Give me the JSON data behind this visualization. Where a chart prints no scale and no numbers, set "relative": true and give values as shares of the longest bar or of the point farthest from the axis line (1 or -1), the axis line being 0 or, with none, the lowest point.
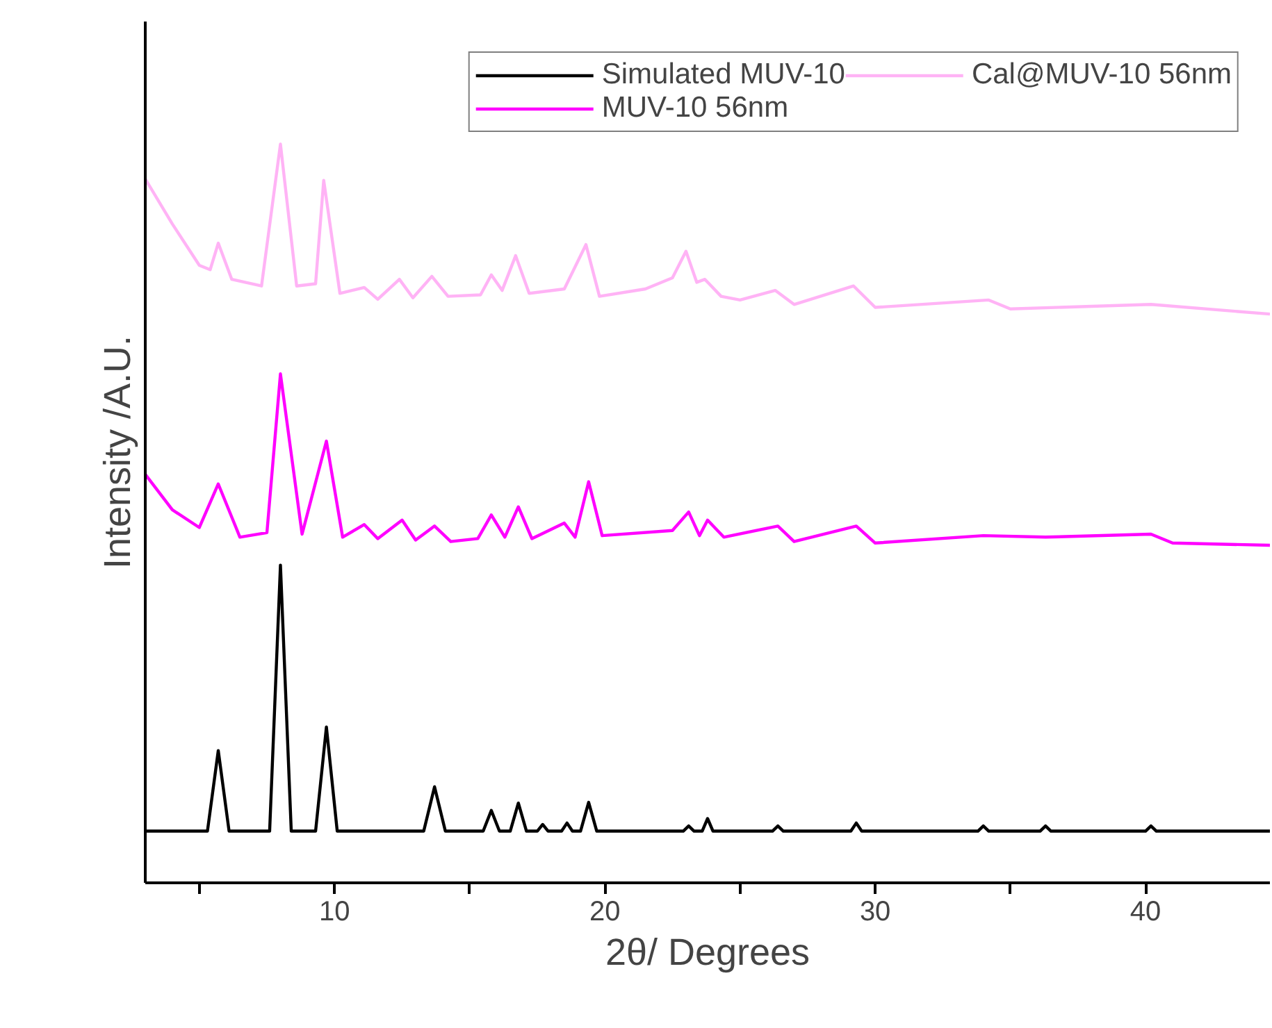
{
  "chart_data": {
    "type": "line",
    "relative": true,
    "xlabel": "2θ/ Degrees",
    "ylabel": "Intensity /A.U.",
    "xlim": [
      3,
      44.6
    ],
    "xticks": [
      {
        "value": 5,
        "label": null
      },
      10,
      {
        "value": 15,
        "label": null
      },
      20,
      {
        "value": 25,
        "label": null
      },
      30,
      {
        "value": 35,
        "label": null
      },
      40
    ],
    "legend": "top right",
    "grid": false,
    "marker": "none",
    "line_style": "solid",
    "series": [
      {
        "name": "Simulated MUV-10",
        "color": "#000000",
        "x": [
          3,
          5.3,
          5.7,
          6.1,
          7.6,
          8.0,
          8.4,
          9.3,
          9.7,
          10.1,
          13.3,
          13.7,
          14.1,
          15.5,
          15.8,
          16.1,
          16.5,
          16.8,
          17.1,
          17.5,
          17.7,
          17.9,
          18.4,
          18.6,
          18.8,
          19.1,
          19.4,
          19.7,
          22.9,
          23.1,
          23.3,
          23.6,
          23.8,
          24.0,
          26.2,
          26.4,
          26.6,
          29.1,
          29.3,
          29.5,
          33.8,
          34.0,
          34.2,
          36.1,
          36.3,
          36.5,
          40.0,
          40.2,
          40.4,
          44.6
        ],
        "values": [
          0.07,
          0.07,
          0.179,
          0.07,
          0.07,
          0.43,
          0.07,
          0.07,
          0.211,
          0.07,
          0.07,
          0.13,
          0.07,
          0.07,
          0.098,
          0.07,
          0.07,
          0.108,
          0.07,
          0.07,
          0.079,
          0.07,
          0.07,
          0.081,
          0.07,
          0.07,
          0.109,
          0.07,
          0.07,
          0.077,
          0.07,
          0.07,
          0.087,
          0.07,
          0.07,
          0.077,
          0.07,
          0.07,
          0.081,
          0.07,
          0.07,
          0.077,
          0.07,
          0.07,
          0.077,
          0.07,
          0.07,
          0.077,
          0.07,
          0.07
        ]
      },
      {
        "name": "MUV-10 56nm",
        "color": "#ff00ff",
        "x": [
          3,
          4,
          5,
          5.7,
          6.5,
          7.5,
          8.0,
          8.8,
          9.7,
          10.3,
          11.1,
          11.6,
          12.5,
          13.0,
          13.7,
          14.3,
          15.3,
          15.8,
          16.3,
          16.8,
          17.3,
          18.5,
          18.9,
          19.4,
          19.9,
          22.5,
          23.1,
          23.5,
          23.8,
          24.4,
          26.4,
          27.0,
          29.3,
          30,
          34,
          36.3,
          40.2,
          41,
          44.6
        ],
        "values": [
          0.553,
          0.505,
          0.481,
          0.54,
          0.468,
          0.474,
          0.689,
          0.472,
          0.598,
          0.468,
          0.485,
          0.466,
          0.491,
          0.464,
          0.483,
          0.462,
          0.466,
          0.498,
          0.468,
          0.509,
          0.466,
          0.487,
          0.468,
          0.543,
          0.47,
          0.477,
          0.502,
          0.47,
          0.491,
          0.468,
          0.483,
          0.462,
          0.483,
          0.46,
          0.47,
          0.468,
          0.472,
          0.46,
          0.457
        ]
      },
      {
        "name": "Cal@MUV-10 56nm",
        "color": "#ffb3f5",
        "x": [
          3,
          4,
          5,
          5.4,
          5.7,
          6.2,
          7.3,
          8.0,
          8.6,
          9.3,
          9.6,
          10.2,
          11.1,
          11.6,
          12.4,
          12.9,
          13.6,
          14.2,
          15.4,
          15.8,
          16.2,
          16.7,
          17.2,
          18.5,
          19.3,
          19.8,
          21.5,
          22.5,
          23.0,
          23.4,
          23.7,
          24.3,
          25,
          26.3,
          27,
          29.2,
          30,
          34.2,
          35,
          40.2,
          44.6
        ],
        "values": [
          0.953,
          0.892,
          0.836,
          0.83,
          0.866,
          0.817,
          0.808,
          1.0,
          0.808,
          0.811,
          0.951,
          0.798,
          0.806,
          0.79,
          0.817,
          0.792,
          0.821,
          0.794,
          0.796,
          0.823,
          0.802,
          0.849,
          0.798,
          0.804,
          0.864,
          0.794,
          0.804,
          0.819,
          0.855,
          0.813,
          0.817,
          0.794,
          0.789,
          0.802,
          0.783,
          0.808,
          0.779,
          0.789,
          0.777,
          0.783,
          0.77
        ]
      }
    ]
  }
}
